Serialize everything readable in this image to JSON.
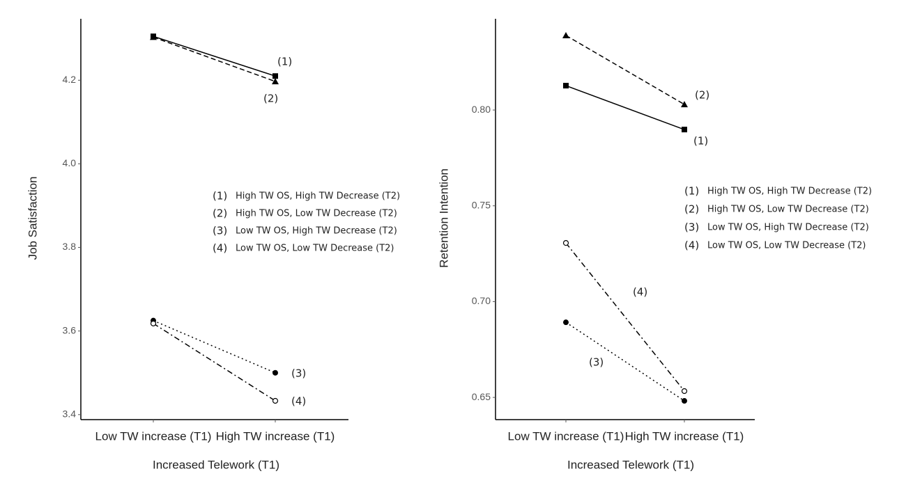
{
  "chart_data": [
    {
      "type": "line",
      "ylabel": "Job Satisfaction",
      "xlabel": "Increased Telework (T1)",
      "categories": [
        "Low TW increase (T1)",
        "High TW increase (T1)"
      ],
      "ylim": [
        3.393,
        4.347
      ],
      "yticks": [
        3.4,
        3.6,
        3.8,
        {
          "value": 4,
          "label": "4.0"
        },
        4.2
      ],
      "series": [
        {
          "key": "(1)",
          "name": "High TW OS, High TW Decrease (T2)",
          "color": "#000000",
          "marker": "square",
          "dash": "solid",
          "values": [
            4.305,
            4.21
          ]
        },
        {
          "key": "(2)",
          "name": "High TW OS, Low TW Decrease (T2)",
          "color": "#000000",
          "marker": "triangle",
          "dash": "dashed",
          "values": [
            4.303,
            4.197
          ]
        },
        {
          "key": "(3)",
          "name": "Low TW OS, High TW Decrease (T2)",
          "color": "#000000",
          "marker": "circle",
          "dash": "dotted",
          "values": [
            3.625,
            3.5
          ]
        },
        {
          "key": "(4)",
          "name": "Low TW OS, Low TW Decrease (T2)",
          "color": "#000000",
          "marker": "open-circle",
          "dash": "dashdot",
          "values": [
            3.618,
            3.433
          ]
        }
      ]
    },
    {
      "type": "line",
      "ylabel": "Retention Intention",
      "xlabel": "Increased Telework (T1)",
      "categories": [
        "Low TW increase (T1)",
        "High TW increase (T1)"
      ],
      "ylim": [
        0.6395,
        0.8476
      ],
      "yticks": [
        0.65,
        {
          "value": 0.7,
          "label": "0.70"
        },
        0.75,
        {
          "value": 0.8,
          "label": "0.80"
        }
      ],
      "series": [
        {
          "key": "(1)",
          "name": "High TW OS, High TW Decrease (T2)",
          "color": "#000000",
          "marker": "square",
          "dash": "solid",
          "values": [
            0.8127,
            0.7898
          ]
        },
        {
          "key": "(2)",
          "name": "High TW OS, Low TW Decrease (T2)",
          "color": "#000000",
          "marker": "triangle",
          "dash": "dashed",
          "values": [
            0.8389,
            0.8029
          ]
        },
        {
          "key": "(3)",
          "name": "Low TW OS, High TW Decrease (T2)",
          "color": "#000000",
          "marker": "circle",
          "dash": "dotted",
          "values": [
            0.6892,
            0.6482
          ]
        },
        {
          "key": "(4)",
          "name": "Low TW OS, Low TW Decrease (T2)",
          "color": "#000000",
          "marker": "open-circle",
          "dash": "dashdot",
          "values": [
            0.7306,
            0.6533
          ]
        }
      ]
    }
  ]
}
